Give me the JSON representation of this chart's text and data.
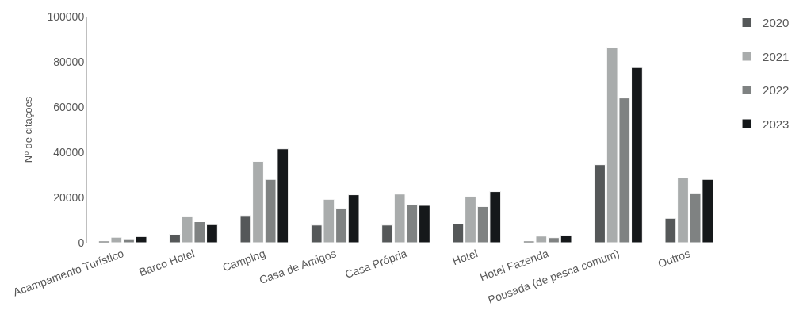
{
  "chart_data": {
    "type": "bar",
    "ylabel": "Nº de citações",
    "categories": [
      "Acampamento Turístico",
      "Barco Hotel",
      "Camping",
      "Casa de Amigos",
      "Casa Própria",
      "Hotel",
      "Hotel Fazenda",
      "Pousada (de pesca comum)",
      "Outros"
    ],
    "series": [
      {
        "name": "2020",
        "color": "#555859",
        "values": [
          700,
          3700,
          12000,
          7800,
          7800,
          8300,
          700,
          34500,
          10800
        ]
      },
      {
        "name": "2021",
        "color": "#a9acac",
        "values": [
          2400,
          11800,
          36000,
          19200,
          21500,
          20400,
          2900,
          86500,
          28700
        ]
      },
      {
        "name": "2022",
        "color": "#7f8282",
        "values": [
          1700,
          9300,
          28000,
          15200,
          17000,
          16000,
          2200,
          64000,
          22000
        ]
      },
      {
        "name": "2023",
        "color": "#15181a",
        "values": [
          2700,
          8000,
          41500,
          21200,
          16500,
          22600,
          3300,
          77500,
          28000
        ]
      }
    ],
    "ylim": [
      0,
      100000
    ],
    "yticks": [
      0,
      20000,
      40000,
      60000,
      80000,
      100000
    ],
    "legend": "right"
  }
}
